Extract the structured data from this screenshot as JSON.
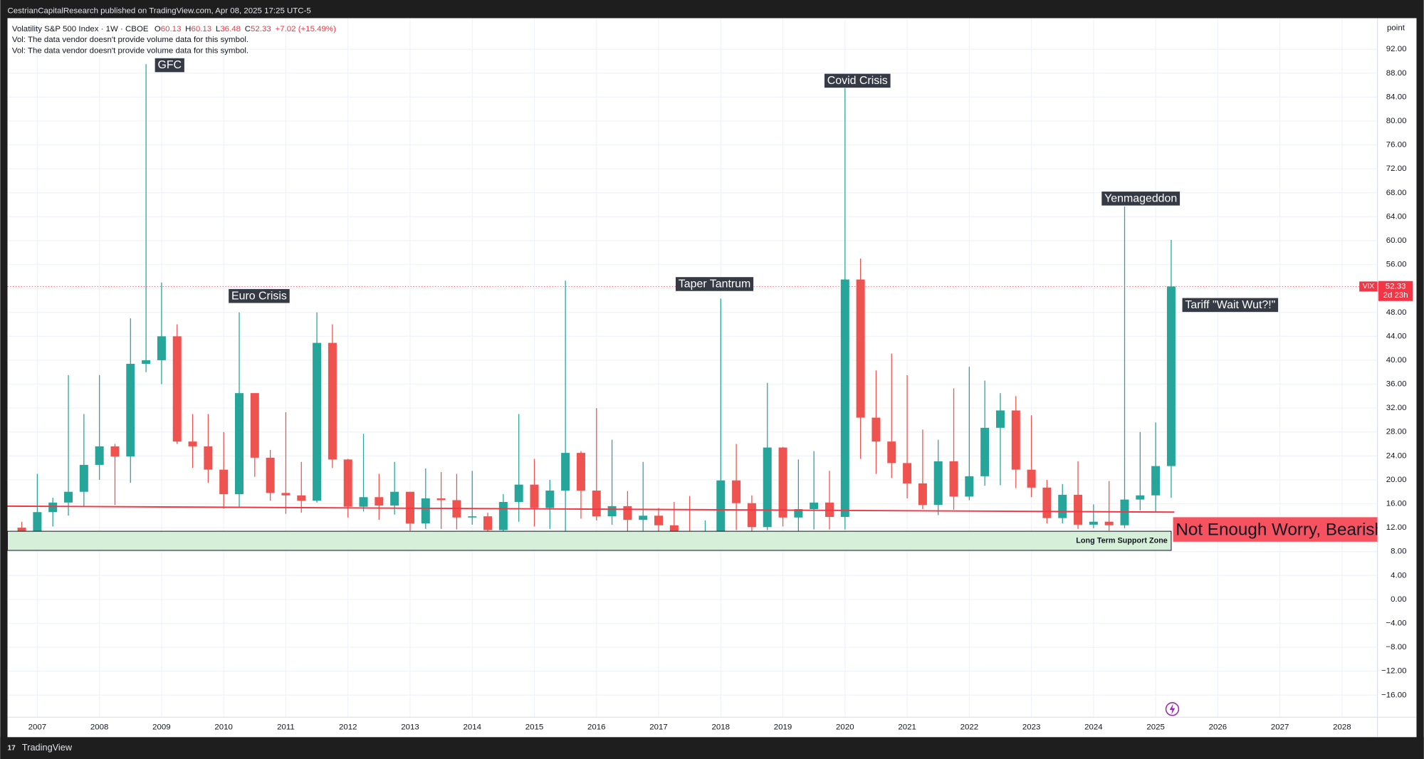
{
  "chart_data": {
    "type": "candlestick",
    "header": "CestrianCapitalResearch published on TradingView.com, Apr 08, 2025 17:25 UTC-5",
    "title": "Volatility S&P 500 Index · 1W · CBOE",
    "last_bar_labels": [
      "O",
      "H",
      "L",
      "C"
    ],
    "last_bar": [
      60.13,
      60.13,
      36.48,
      52.33
    ],
    "last_change": {
      "value": 7.02,
      "label": "+7.02 (+15.49%)"
    },
    "notes": [
      "Vol: The data vendor doesn't provide volume data for this symbol.",
      "Vol: The data vendor doesn't provide volume data for this symbol."
    ],
    "y_unit": "point",
    "up_color": "#26a69a",
    "down_color": "#ef5350",
    "grid": true,
    "xlim": [
      2006.52,
      2028.57
    ],
    "xticks": [
      2007,
      2008,
      2009,
      2010,
      2011,
      2012,
      2013,
      2014,
      2015,
      2016,
      2017,
      2018,
      2019,
      2020,
      2021,
      2022,
      2023,
      2024,
      2025,
      2026,
      2027,
      2028
    ],
    "ylim": [
      -19.7,
      97.2
    ],
    "yticks": [
      {
        "value": 92,
        "label": "92.00"
      },
      {
        "value": 88,
        "label": "88.00"
      },
      {
        "value": 84,
        "label": "84.00"
      },
      {
        "value": 80,
        "label": "80.00"
      },
      {
        "value": 76,
        "label": "76.00"
      },
      {
        "value": 72,
        "label": "72.00"
      },
      {
        "value": 68,
        "label": "68.00"
      },
      {
        "value": 64,
        "label": "64.00"
      },
      {
        "value": 60,
        "label": "60.00"
      },
      {
        "value": 56,
        "label": "56.00"
      },
      {
        "value": 52,
        "label": "52.00"
      },
      {
        "value": 48,
        "label": "48.00"
      },
      {
        "value": 44,
        "label": "44.00"
      },
      {
        "value": 40,
        "label": "40.00"
      },
      {
        "value": 36,
        "label": "36.00"
      },
      {
        "value": 32,
        "label": "32.00"
      },
      {
        "value": 28,
        "label": "28.00"
      },
      {
        "value": 24,
        "label": "24.00"
      },
      {
        "value": 20,
        "label": "20.00"
      },
      {
        "value": 16,
        "label": "16.00"
      },
      {
        "value": 12,
        "label": "12.00"
      },
      {
        "value": 8,
        "label": "8.00"
      },
      {
        "value": 4,
        "label": "4.00"
      },
      {
        "value": 0,
        "label": "0.00"
      },
      {
        "value": -4,
        "label": "−4.00"
      },
      {
        "value": -8,
        "label": "−8.00"
      },
      {
        "value": -12,
        "label": "−12.00"
      },
      {
        "value": -16,
        "label": "−16.00"
      }
    ],
    "candles": {
      "x": [
        2006.75,
        2007.0,
        2007.25,
        2007.5,
        2007.75,
        2008.0,
        2008.25,
        2008.5,
        2008.75,
        2009.0,
        2009.25,
        2009.5,
        2009.75,
        2010.0,
        2010.25,
        2010.5,
        2010.75,
        2011.0,
        2011.25,
        2011.5,
        2011.75,
        2012.0,
        2012.25,
        2012.5,
        2012.75,
        2013.0,
        2013.25,
        2013.5,
        2013.75,
        2014.0,
        2014.25,
        2014.5,
        2014.75,
        2015.0,
        2015.25,
        2015.5,
        2015.75,
        2016.0,
        2016.25,
        2016.5,
        2016.75,
        2017.0,
        2017.25,
        2017.5,
        2017.75,
        2018.0,
        2018.25,
        2018.5,
        2018.75,
        2019.0,
        2019.25,
        2019.5,
        2019.75,
        2020.0,
        2020.25,
        2020.5,
        2020.75,
        2021.0,
        2021.25,
        2021.5,
        2021.75,
        2022.0,
        2022.25,
        2022.5,
        2022.75,
        2023.0,
        2023.25,
        2023.5,
        2023.75,
        2024.0,
        2024.25,
        2024.5,
        2024.75,
        2025.0,
        2025.25
      ],
      "open": [
        12,
        11,
        14.6,
        16.2,
        18,
        22.5,
        25.6,
        23.9,
        39.4,
        40,
        44,
        26.4,
        25.6,
        21.7,
        17.6,
        34.5,
        23.7,
        17.8,
        17.4,
        16.5,
        42.9,
        23.4,
        15.5,
        17.1,
        15.7,
        18,
        12.7,
        16.9,
        16.6,
        13.7,
        13.9,
        11.6,
        16.3,
        19.2,
        15.3,
        18.2,
        24.5,
        18.2,
        13.9,
        15.6,
        13.3,
        14,
        12.4,
        11.2,
        9.5,
        11,
        19.9,
        16.1,
        12.1,
        25.4,
        13.7,
        15.1,
        16.2,
        13.8,
        53.5,
        30.4,
        26.4,
        22.8,
        19.4,
        15.8,
        23.1,
        17.2,
        20.6,
        28.7,
        31.6,
        21.7,
        18.7,
        13.6,
        17.5,
        12.5,
        13,
        12.4,
        16.7,
        17.4,
        22.3
      ],
      "high": [
        13,
        21,
        17,
        37.5,
        31,
        37.5,
        26,
        47,
        89.5,
        53,
        46,
        31,
        31,
        28,
        48,
        34.5,
        25,
        31.3,
        23,
        48,
        46,
        23.5,
        27.7,
        21,
        23,
        18,
        21.9,
        21.3,
        21,
        21.5,
        14.5,
        17.6,
        31,
        23.5,
        20,
        53.3,
        24.8,
        32,
        26.7,
        18.1,
        23,
        15.3,
        16.3,
        17.3,
        13.2,
        50.3,
        26,
        17.4,
        36.2,
        25.5,
        23.4,
        24.8,
        21.5,
        85.5,
        57,
        38.3,
        41.1,
        37.5,
        28.4,
        26.7,
        35.3,
        38.9,
        36.6,
        34.5,
        34,
        30.8,
        20,
        19.3,
        23.1,
        15.9,
        19.8,
        65.7,
        28,
        29.6,
        60.13
      ],
      "low": [
        9.5,
        9.7,
        12.2,
        14,
        15.5,
        20,
        15.8,
        19.5,
        38,
        36,
        26,
        22,
        19.5,
        15.2,
        15.5,
        20.5,
        16.5,
        14.3,
        14.5,
        16.2,
        22,
        13.7,
        14.7,
        13.3,
        14.2,
        11.5,
        11.8,
        11.8,
        11.7,
        12.5,
        10.3,
        10.3,
        13,
        12.2,
        11.8,
        11.4,
        13.5,
        13.2,
        12.5,
        11,
        11,
        10.6,
        9.6,
        8.8,
        8.6,
        8.9,
        11.6,
        10.2,
        11.6,
        12.2,
        11,
        11.7,
        11.7,
        11.7,
        23.5,
        21,
        20.3,
        16.9,
        15.1,
        14.1,
        15,
        16.6,
        19,
        19.1,
        18.6,
        17.1,
        12.7,
        12.7,
        11.8,
        11.9,
        11.5,
        11.9,
        14.9,
        14.6,
        17
      ],
      "close": [
        11,
        14.6,
        16.2,
        18,
        22.5,
        25.6,
        23.9,
        39.4,
        40,
        44,
        26.4,
        25.6,
        21.7,
        17.6,
        34.5,
        23.7,
        17.8,
        17.4,
        16.5,
        42.9,
        23.4,
        15.5,
        17.1,
        15.7,
        18,
        12.7,
        16.9,
        16.6,
        13.7,
        13.9,
        11.6,
        16.3,
        19.2,
        15.3,
        18.2,
        24.5,
        18.2,
        13.9,
        15.6,
        13.3,
        14,
        12.4,
        11.2,
        9.5,
        11,
        19.9,
        16.1,
        12.1,
        25.4,
        13.7,
        15.1,
        16.2,
        13.8,
        53.5,
        30.4,
        26.4,
        22.8,
        19.4,
        15.8,
        23.1,
        17.2,
        20.6,
        28.7,
        31.6,
        21.7,
        18.7,
        13.6,
        17.5,
        12.5,
        13,
        12.4,
        16.7,
        17.4,
        22.3,
        52.33
      ]
    },
    "last_price": {
      "symbol": "VIX",
      "value": 52.33,
      "countdown": "2d 23h",
      "color": "#f23645"
    },
    "trendline": {
      "x": [
        2006.52,
        2025.3
      ],
      "y": [
        15.6,
        14.6
      ],
      "color": "#f23645"
    },
    "support_zone": {
      "x": [
        2006.52,
        2025.25
      ],
      "y": [
        8.2,
        11.4
      ],
      "label": "Long Term Support Zone",
      "color": "#d6efd8"
    },
    "callout": {
      "text": "Not Enough Worry, Bearish",
      "x": 2025.28,
      "y": 11.7,
      "color": "#f7525f"
    },
    "annotations": [
      {
        "text": "GFC",
        "x": 2009.13,
        "y": 89.3
      },
      {
        "text": "Euro Crisis",
        "x": 2010.57,
        "y": 50.7
      },
      {
        "text": "Taper Tantrum",
        "x": 2017.9,
        "y": 52.7
      },
      {
        "text": "Covid Crisis",
        "x": 2020.2,
        "y": 86.7
      },
      {
        "text": "Yenmageddon",
        "x": 2024.76,
        "y": 67
      },
      {
        "text": "Tariff \"Wait Wut?!\"",
        "x": 2026.2,
        "y": 49.2
      }
    ],
    "footer": "TradingView"
  }
}
